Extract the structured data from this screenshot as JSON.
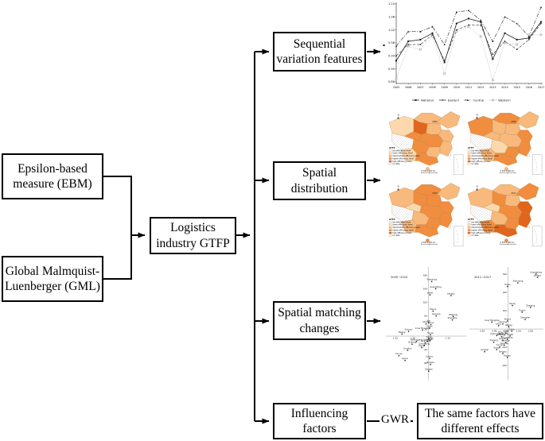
{
  "flowchart": {
    "ebm_label": "Epsilon-based measure (EBM)",
    "gml_label": "Global Malmquist-Luenberger (GML)",
    "gtfp_label": "Logistics industry GTFP",
    "branches": [
      "Sequential variation features",
      "Spatial distribution",
      "Spatial matching changes",
      "Influencing factors"
    ],
    "gwr_label": "GWR",
    "result_label": "The same factors have different effects"
  },
  "chart_data": [
    {
      "id": "gtfp-trend-chart",
      "type": "line",
      "title": "",
      "xlabel": "",
      "ylabel": "",
      "x": [
        2005,
        2006,
        2007,
        2008,
        2009,
        2010,
        2011,
        2012,
        2013,
        2014,
        2015,
        2016,
        2017
      ],
      "ylim": [
        0.86,
        1.1
      ],
      "yticks": [
        1.1,
        1.06,
        1.02,
        0.98,
        0.94,
        0.9,
        0.86
      ],
      "grid": false,
      "legend_position": "bottom",
      "series": [
        {
          "name": "National",
          "dash": "solid",
          "marker": "square",
          "color": "#1a1a1a",
          "width": 0.8,
          "values": [
            0.925,
            0.985,
            0.99,
            1.01,
            0.92,
            1.04,
            1.055,
            1.045,
            0.93,
            1.01,
            0.99,
            0.995,
            1.045
          ]
        },
        {
          "name": "Eastern",
          "dash": "dashed",
          "marker": "circle",
          "color": "#333333",
          "width": 0.6,
          "values": [
            0.94,
            0.975,
            0.975,
            1.005,
            0.925,
            1.02,
            1.035,
            1.035,
            0.945,
            0.985,
            0.96,
            0.99,
            1.04
          ]
        },
        {
          "name": "Central",
          "dash": "dashdot",
          "marker": "triangle",
          "color": "#2a2a2a",
          "width": 0.6,
          "values": [
            0.97,
            1.015,
            1.015,
            1.03,
            0.975,
            1.075,
            1.08,
            1.05,
            0.985,
            1.06,
            1.04,
            1.0,
            1.09
          ]
        },
        {
          "name": "Western",
          "dash": "dotted",
          "marker": "square-open",
          "color": "#8a8a8a",
          "width": 0.5,
          "values": [
            0.87,
            0.97,
            0.96,
            1.0,
            0.885,
            1.015,
            1.03,
            1.0,
            0.865,
            0.98,
            0.975,
            1.005,
            1.005
          ]
        }
      ]
    },
    {
      "id": "spatial-distribution-maps",
      "type": "heatmap",
      "subtype": "choropleth-grid",
      "legend_title": "GTFP",
      "legend_items": [
        "low efficiency level",
        "lower efficiency level",
        "intermediate efficiency level",
        "higher efficiency level",
        "high efficiency level",
        "no data"
      ],
      "colors": [
        "#fdf2e0",
        "#fbd9ac",
        "#f8b97c",
        "#f08d3f",
        "#e0661d"
      ],
      "scale_text": "0  500  1,000 km",
      "north_label": "N",
      "regions": [
        "2,14 22,6 34,10 34,26 22,32 6,28",
        "6,28 22,32 34,36 32,48 18,50 6,40",
        "22,32 34,26 44,30 42,38 34,36",
        "34,10 44,2 58,2 70,8 64,16 52,16 42,14",
        "34,26 34,10 42,14 52,16 50,28 44,30",
        "70,8 82,0 94,6 90,18 78,22 68,16 64,16",
        "52,16 64,16 68,16 70,24 66,30 56,30 50,28",
        "66,30 70,24 80,24 86,32 82,40 72,38",
        "50,28 56,30 66,30 72,38 68,46 54,46 48,40 42,38 44,30",
        "72,38 82,40 84,48 78,58 68,54 68,46",
        "34,36 42,38 48,40 54,46 50,54 38,54 32,48",
        "32,48 38,54 36,64 24,64 20,56 18,50",
        "54,46 68,46 68,54 64,60 52,58 50,54",
        "38,54 50,54 52,58 64,60 66,66 54,70 40,64 36,64"
      ],
      "maps": [
        {
          "label": "2005",
          "levels": [
            1,
            5,
            3,
            2,
            4,
            2,
            2,
            2,
            3,
            2,
            3,
            1,
            2,
            3
          ],
          "hainan": 2
        },
        {
          "label": "2009",
          "levels": [
            3,
            5,
            2,
            3,
            2,
            2,
            2,
            3,
            2,
            3,
            1,
            2,
            3,
            3
          ],
          "hainan": 2
        },
        {
          "label": "2013",
          "levels": [
            2,
            5,
            1,
            3,
            3,
            2,
            3,
            3,
            3,
            3,
            2,
            2,
            3,
            3
          ],
          "hainan": 3
        },
        {
          "label": "2017",
          "levels": [
            2,
            5,
            1,
            2,
            3,
            3,
            2,
            4,
            3,
            4,
            2,
            3,
            3,
            4
          ],
          "hainan": 3
        }
      ]
    },
    {
      "id": "spatial-matching-scatter",
      "type": "scatter",
      "panels": [
        {
          "label": "2005~2010",
          "xlim": [
            1.0,
            1.18
          ],
          "ylim": [
            -120,
            200
          ],
          "vaxis": 1.095,
          "xticks": [
            "1.02",
            "1.06",
            "1.10",
            "1.14"
          ],
          "yticks": [
            180,
            140,
            100,
            60,
            20,
            -40,
            -80
          ],
          "points": [
            [
              "Shandong",
              1.103,
              162
            ],
            [
              "Guangdong",
              1.112,
              140
            ],
            [
              "Hebei",
              1.099,
              122
            ],
            [
              "Jiangsu",
              1.147,
              120
            ],
            [
              "Henan",
              1.106,
              74
            ],
            [
              "Liaoning",
              1.113,
              60
            ],
            [
              "Zhejiang",
              1.152,
              58
            ],
            [
              "Shanghai",
              1.15,
              48
            ],
            [
              "Jilin",
              1.096,
              40
            ],
            [
              "Shanxi",
              1.09,
              36
            ],
            [
              "Anhui",
              1.101,
              34
            ],
            [
              "Hubei",
              1.098,
              24
            ],
            [
              "Inner Mongolia",
              1.082,
              18
            ],
            [
              "Sichuan",
              1.05,
              14
            ],
            [
              "Beijing",
              1.035,
              6
            ],
            [
              "Hunan",
              1.1,
              4
            ],
            [
              "Fujian",
              1.097,
              -8
            ],
            [
              "Jiangxi",
              1.099,
              -14
            ],
            [
              "Shaanxi",
              1.093,
              -16
            ],
            [
              "Guangxi",
              1.088,
              -20
            ],
            [
              "Heilongjiang",
              1.068,
              -16
            ],
            [
              "Xinjiang",
              1.058,
              -24
            ],
            [
              "Chongqing",
              1.086,
              -28
            ],
            [
              "Tianjin",
              1.08,
              -34
            ],
            [
              "Guizhou",
              1.048,
              -42
            ],
            [
              "Yunnan",
              1.028,
              -58
            ],
            [
              "Gansu",
              1.042,
              -72
            ],
            [
              "Hainan",
              1.098,
              -66
            ],
            [
              "Ningxia",
              1.1,
              -84
            ],
            [
              "Qinghai",
              1.096,
              -104
            ]
          ]
        },
        {
          "label": "2011~2017",
          "xlim": [
            0.88,
            1.12
          ],
          "ylim": [
            -260,
            330
          ],
          "vaxis": 1.005,
          "xticks": [
            "0.92",
            "0.96",
            "1.00",
            "1.04",
            "1.08"
          ],
          "yticks": [
            300,
            200,
            100,
            -100,
            -200
          ],
          "points": [
            [
              "Guangdong",
              1.098,
              300
            ],
            [
              "Jiangsu",
              1.103,
              282
            ],
            [
              "Shandong",
              1.038,
              252
            ],
            [
              "Hebei",
              1.004,
              232
            ],
            [
              "Henan",
              1.02,
              128
            ],
            [
              "Zhejiang",
              1.08,
              118
            ],
            [
              "Tianjin",
              1.052,
              92
            ],
            [
              "Shanghai",
              1.062,
              52
            ],
            [
              "Shanxi",
              1.004,
              44
            ],
            [
              "Inner Mongolia",
              0.952,
              38
            ],
            [
              "Liaoning",
              0.988,
              28
            ],
            [
              "Anhui",
              0.974,
              18
            ],
            [
              "Beijing",
              1.008,
              12
            ],
            [
              "Fujian",
              1.018,
              -12
            ],
            [
              "Hubei",
              0.998,
              -22
            ],
            [
              "Jilin",
              0.978,
              -26
            ],
            [
              "Hunan",
              0.993,
              -32
            ],
            [
              "Heilongjiang",
              0.968,
              -36
            ],
            [
              "Jiangxi",
              1.012,
              -38
            ],
            [
              "Shaanxi",
              0.984,
              -42
            ],
            [
              "Chongqing",
              1.003,
              -56
            ],
            [
              "Sichuan",
              0.988,
              -62
            ],
            [
              "Xinjiang",
              0.958,
              -72
            ],
            [
              "Guangxi",
              0.998,
              -74
            ],
            [
              "Guizhou",
              0.993,
              -88
            ],
            [
              "Yunnan",
              0.978,
              -98
            ],
            [
              "Gansu",
              0.968,
              -112
            ],
            [
              "Qinghai",
              0.928,
              -124
            ],
            [
              "Ningxia",
              0.988,
              -134
            ],
            [
              "Hainan",
              1.003,
              -155
            ]
          ]
        }
      ]
    }
  ]
}
